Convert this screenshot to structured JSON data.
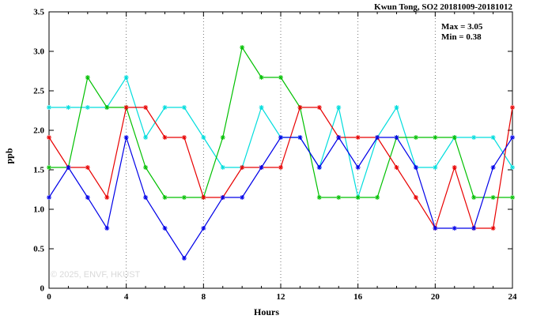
{
  "watermark": "© 2025, ENVF, HKUST",
  "chart_data": {
    "type": "line",
    "title": "Kwun Tong, SO2 20181009-20181012",
    "xlabel": "Hours",
    "ylabel": "ppb",
    "xlim": [
      0,
      24
    ],
    "ylim": [
      0,
      3.5
    ],
    "xticks": [
      0,
      4,
      8,
      12,
      16,
      20,
      24
    ],
    "yticks": [
      0,
      0.5,
      1.0,
      1.5,
      2.0,
      2.5,
      3.0,
      3.5
    ],
    "ytick_labels": [
      "0",
      "0.5",
      "1.0",
      "1.5",
      "2.0",
      "2.5",
      "3.0",
      "3.5"
    ],
    "grid": "vertical dotted lines at major x ticks",
    "legend": "none",
    "annotations": [
      "Max = 3.05",
      "Min = 0.38"
    ],
    "x": [
      0,
      1,
      2,
      3,
      4,
      5,
      6,
      7,
      8,
      9,
      10,
      11,
      12,
      13,
      14,
      15,
      16,
      17,
      18,
      19,
      20,
      21,
      22,
      23,
      24
    ],
    "series": [
      {
        "name": "series-cyan",
        "color": "#00dddd",
        "values": [
          2.29,
          2.29,
          2.29,
          2.29,
          2.67,
          1.91,
          2.29,
          2.29,
          1.91,
          1.53,
          1.53,
          2.29,
          1.91,
          1.91,
          1.53,
          2.29,
          1.15,
          1.91,
          2.29,
          1.53,
          1.53,
          1.91,
          1.91,
          1.91,
          1.53
        ]
      },
      {
        "name": "series-green",
        "color": "#00c000",
        "values": [
          1.53,
          1.53,
          2.67,
          2.29,
          2.29,
          1.53,
          1.15,
          1.15,
          1.15,
          1.91,
          3.05,
          2.67,
          2.67,
          2.29,
          1.15,
          1.15,
          1.15,
          1.15,
          1.91,
          1.91,
          1.91,
          1.91,
          1.15,
          1.15,
          1.15
        ]
      },
      {
        "name": "series-red",
        "color": "#e80000",
        "values": [
          1.91,
          1.53,
          1.53,
          1.15,
          2.29,
          2.29,
          1.91,
          1.91,
          1.15,
          1.15,
          1.53,
          1.53,
          1.53,
          2.29,
          2.29,
          1.91,
          1.91,
          1.91,
          1.53,
          1.15,
          0.76,
          1.53,
          0.76,
          0.76,
          2.29
        ]
      },
      {
        "name": "series-blue",
        "color": "#0000e8",
        "values": [
          1.15,
          1.53,
          1.15,
          0.76,
          1.91,
          1.15,
          0.76,
          0.38,
          0.76,
          1.15,
          1.15,
          1.53,
          1.91,
          1.91,
          1.53,
          1.91,
          1.53,
          1.91,
          1.91,
          1.53,
          0.76,
          0.76,
          0.76,
          1.53,
          1.91
        ]
      }
    ]
  }
}
